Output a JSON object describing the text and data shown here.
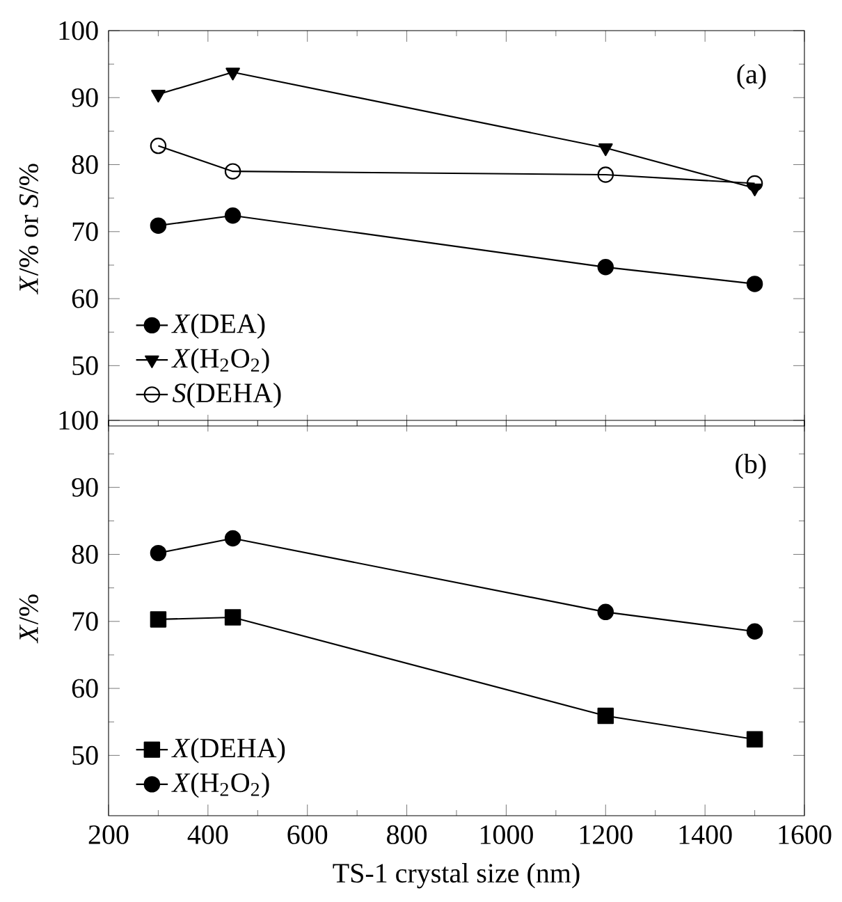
{
  "chart_data": [
    {
      "type": "line",
      "ylabel": "*X*/% or *S*/%",
      "xlim": [
        200,
        1600
      ],
      "xticks": [
        200,
        400,
        600,
        800,
        1000,
        1200,
        1400,
        1600
      ],
      "ylim": [
        41,
        100
      ],
      "yticks": [
        50,
        60,
        70,
        80,
        90,
        100
      ],
      "tick_labels": "y",
      "grid": false,
      "legend": "bottom left",
      "annotations": [
        "(a)"
      ],
      "x": [
        300,
        450,
        1200,
        1500
      ],
      "series": [
        {
          "name": "*X*(DEA)",
          "color": "#000000",
          "marker": "circle",
          "values": [
            70.9,
            72.4,
            64.7,
            62.2
          ]
        },
        {
          "name": "*X*(H$_{2}$O$_{2}$)",
          "color": "#000000",
          "marker": "triangle-down",
          "values": [
            90.5,
            93.8,
            82.5,
            76.5
          ]
        },
        {
          "name": "*S*(DEHA)",
          "color": "#000000",
          "marker": "open-circle",
          "values": [
            82.8,
            79.0,
            78.5,
            77.2
          ]
        }
      ]
    },
    {
      "type": "line",
      "ylabel": "*X*/%",
      "xlabel": "TS-1 crystal size (nm)",
      "xlim": [
        200,
        1600
      ],
      "xticks": [
        200,
        400,
        600,
        800,
        1000,
        1200,
        1400,
        1600
      ],
      "ylim": [
        41,
        100
      ],
      "yticks": [
        50,
        60,
        70,
        80,
        90,
        100
      ],
      "grid": false,
      "legend": "bottom left",
      "annotations": [
        "(b)"
      ],
      "x": [
        300,
        450,
        1200,
        1500
      ],
      "series": [
        {
          "name": "*X*(DEHA)",
          "color": "#000000",
          "marker": "square",
          "values": [
            70.3,
            70.6,
            55.9,
            52.4
          ]
        },
        {
          "name": "*X*(H$_{2}$O$_{2}$)",
          "color": "#000000",
          "marker": "circle",
          "values": [
            80.2,
            82.4,
            71.4,
            68.5
          ]
        }
      ]
    }
  ]
}
